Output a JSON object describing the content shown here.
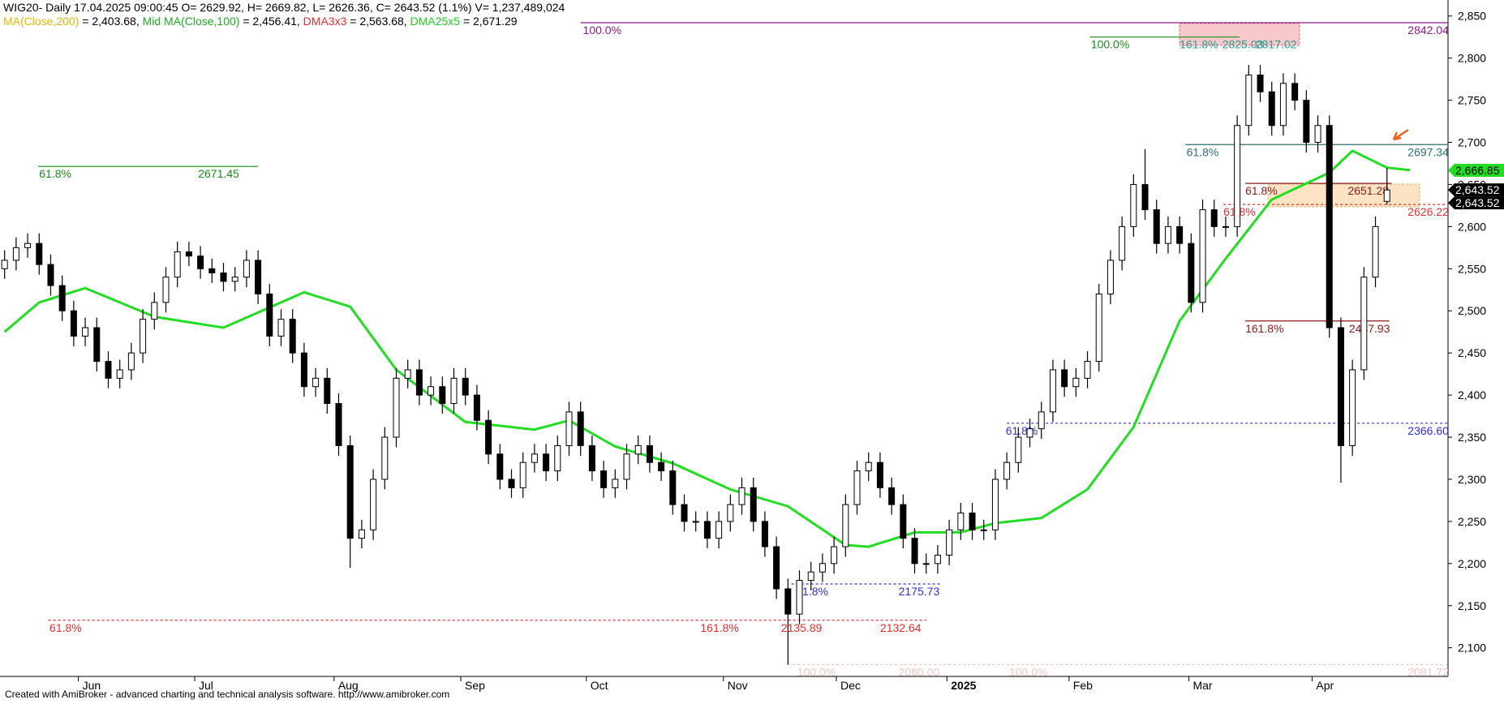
{
  "header": {
    "title": "WIG20- Daily 17.04.2025 09:00:45 O= 2629.92, H= 2669.82, L= 2626.36, C= 2643.52 (1.1%) V= 1,237,489,024",
    "indicators": [
      {
        "name": "MA(Close,200)",
        "value": " = 2,403.68, ",
        "color": "#e6b800"
      },
      {
        "name": "Mid MA(Close,100)",
        "value": " = 2,456.41, ",
        "color": "#22aa22"
      },
      {
        "name": "DMA3x3",
        "value": " = 2,563.68, ",
        "color": "#e03030"
      },
      {
        "name": "DMA25x5",
        "value": " = 2,671.29",
        "color": "#22cc22"
      }
    ]
  },
  "footer": "Created with AmiBroker - advanced charting and technical analysis software. http://www.amibroker.com",
  "chart_data": {
    "type": "candlestick",
    "xlim": [
      -0.4,
      125.3
    ],
    "ylim": [
      2066,
      2869
    ],
    "yticks": [
      {
        "value": 2100,
        "label": "2,100"
      },
      {
        "value": 2150,
        "label": "2,150"
      },
      {
        "value": 2200,
        "label": "2,200"
      },
      {
        "value": 2250,
        "label": "2,250"
      },
      {
        "value": 2300,
        "label": "2,300"
      },
      {
        "value": 2350,
        "label": "2,350"
      },
      {
        "value": 2400,
        "label": "2,400"
      },
      {
        "value": 2450,
        "label": "2,450"
      },
      {
        "value": 2500,
        "label": "2,500"
      },
      {
        "value": 2550,
        "label": "2,550"
      },
      {
        "value": 2600,
        "label": "2,600"
      },
      {
        "value": 2650,
        "label": "2,650"
      },
      {
        "value": 2700,
        "label": "2,700"
      },
      {
        "value": 2750,
        "label": "2,750"
      },
      {
        "value": 2800,
        "label": "2,800"
      },
      {
        "value": 2850,
        "label": "2,850"
      }
    ],
    "xticks": [
      {
        "value": 6.4,
        "label": "Jun"
      },
      {
        "value": 16.5,
        "label": "Jul"
      },
      {
        "value": 28.6,
        "label": "Aug"
      },
      {
        "value": 39.6,
        "label": "Sep"
      },
      {
        "value": 50.5,
        "label": "Oct"
      },
      {
        "value": 62.4,
        "label": "Nov"
      },
      {
        "value": 72.2,
        "label": "Dec"
      },
      {
        "value": 81.8,
        "label": "2025"
      },
      {
        "value": 92.4,
        "label": "Feb"
      },
      {
        "value": 102.8,
        "label": "Mar"
      },
      {
        "value": 113.5,
        "label": "Apr"
      }
    ],
    "up_color": "#ffffff",
    "down_color": "#000000",
    "open": [
      2550,
      2560,
      2575,
      2580,
      2555,
      2530,
      2500,
      2470,
      2480,
      2440,
      2420,
      2430,
      2450,
      2490,
      2510,
      2540,
      2570,
      2565,
      2550,
      2545,
      2535,
      2540,
      2560,
      2520,
      2470,
      2490,
      2450,
      2410,
      2420,
      2390,
      2340,
      2230,
      2240,
      2300,
      2350,
      2420,
      2430,
      2400,
      2410,
      2390,
      2420,
      2400,
      2370,
      2330,
      2300,
      2290,
      2320,
      2330,
      2310,
      2340,
      2380,
      2340,
      2310,
      2290,
      2300,
      2330,
      2340,
      2320,
      2310,
      2270,
      2250,
      2250,
      2230,
      2250,
      2270,
      2290,
      2250,
      2220,
      2170,
      2140,
      2180,
      2190,
      2200,
      2220,
      2270,
      2310,
      2320,
      2290,
      2270,
      2230,
      2200,
      2200,
      2210,
      2240,
      2260,
      2240,
      2240,
      2300,
      2320,
      2350,
      2360,
      2380,
      2430,
      2410,
      2420,
      2440,
      2520,
      2560,
      2600,
      2650,
      2620,
      2580,
      2600,
      2580,
      2510,
      2620,
      2600,
      2600,
      2720,
      2780,
      2760,
      2720,
      2770,
      2750,
      2700,
      2720,
      2480,
      2340,
      2430,
      2540,
      2629.92
    ],
    "high": [
      2572,
      2587,
      2592,
      2592,
      2567,
      2542,
      2512,
      2492,
      2492,
      2452,
      2442,
      2462,
      2502,
      2522,
      2552,
      2582,
      2582,
      2577,
      2562,
      2557,
      2552,
      2572,
      2572,
      2532,
      2502,
      2502,
      2462,
      2432,
      2432,
      2402,
      2352,
      2252,
      2312,
      2362,
      2432,
      2442,
      2442,
      2422,
      2422,
      2432,
      2432,
      2412,
      2382,
      2342,
      2312,
      2332,
      2342,
      2342,
      2352,
      2392,
      2392,
      2352,
      2322,
      2312,
      2342,
      2352,
      2352,
      2332,
      2322,
      2282,
      2262,
      2262,
      2262,
      2282,
      2302,
      2302,
      2262,
      2232,
      2182,
      2192,
      2202,
      2212,
      2232,
      2282,
      2322,
      2332,
      2332,
      2302,
      2282,
      2242,
      2212,
      2222,
      2252,
      2272,
      2272,
      2252,
      2312,
      2332,
      2362,
      2372,
      2392,
      2442,
      2442,
      2432,
      2452,
      2532,
      2572,
      2612,
      2662,
      2692,
      2632,
      2612,
      2612,
      2592,
      2632,
      2632,
      2612,
      2732,
      2792,
      2792,
      2772,
      2782,
      2782,
      2762,
      2732,
      2732,
      2492,
      2442,
      2552,
      2612,
      2669.82
    ],
    "low": [
      2538,
      2548,
      2563,
      2543,
      2518,
      2488,
      2458,
      2458,
      2428,
      2408,
      2408,
      2418,
      2438,
      2478,
      2498,
      2528,
      2553,
      2538,
      2533,
      2523,
      2523,
      2528,
      2508,
      2458,
      2458,
      2438,
      2398,
      2398,
      2378,
      2328,
      2195,
      2218,
      2228,
      2288,
      2338,
      2408,
      2388,
      2388,
      2378,
      2378,
      2388,
      2358,
      2318,
      2288,
      2278,
      2278,
      2308,
      2298,
      2298,
      2328,
      2328,
      2298,
      2278,
      2278,
      2288,
      2318,
      2308,
      2298,
      2258,
      2238,
      2238,
      2218,
      2218,
      2238,
      2258,
      2238,
      2208,
      2158,
      2080,
      2128,
      2168,
      2178,
      2188,
      2208,
      2258,
      2298,
      2278,
      2258,
      2218,
      2188,
      2188,
      2188,
      2198,
      2228,
      2228,
      2228,
      2228,
      2288,
      2308,
      2338,
      2348,
      2368,
      2398,
      2398,
      2408,
      2428,
      2508,
      2548,
      2588,
      2608,
      2568,
      2568,
      2568,
      2498,
      2498,
      2588,
      2588,
      2588,
      2708,
      2748,
      2708,
      2708,
      2738,
      2688,
      2688,
      2468,
      2296,
      2328,
      2418,
      2528,
      2626.36
    ],
    "close": [
      2560,
      2575,
      2580,
      2555,
      2530,
      2500,
      2470,
      2480,
      2440,
      2420,
      2430,
      2450,
      2490,
      2510,
      2540,
      2570,
      2565,
      2550,
      2545,
      2535,
      2540,
      2560,
      2520,
      2470,
      2490,
      2450,
      2410,
      2420,
      2390,
      2340,
      2230,
      2240,
      2300,
      2350,
      2420,
      2430,
      2400,
      2410,
      2390,
      2420,
      2400,
      2370,
      2330,
      2300,
      2290,
      2320,
      2330,
      2310,
      2340,
      2380,
      2340,
      2310,
      2290,
      2300,
      2330,
      2340,
      2320,
      2310,
      2270,
      2250,
      2250,
      2230,
      2250,
      2270,
      2290,
      2250,
      2220,
      2170,
      2140,
      2180,
      2190,
      2200,
      2220,
      2270,
      2310,
      2320,
      2290,
      2270,
      2230,
      2200,
      2200,
      2210,
      2240,
      2260,
      2240,
      2240,
      2300,
      2320,
      2350,
      2360,
      2380,
      2430,
      2410,
      2420,
      2440,
      2520,
      2560,
      2600,
      2650,
      2620,
      2580,
      2600,
      2580,
      2510,
      2620,
      2600,
      2600,
      2720,
      2780,
      2760,
      2720,
      2770,
      2750,
      2700,
      2720,
      2480,
      2340,
      2430,
      2540,
      2600,
      2643.52
    ],
    "ma": {
      "color": "#22dd22",
      "x": [
        0,
        3,
        7,
        13,
        19,
        26,
        30,
        34,
        40,
        46,
        49,
        53,
        58,
        63,
        68,
        73,
        75,
        79,
        83,
        86,
        90,
        94,
        98,
        102,
        106,
        110,
        115,
        117,
        120,
        122
      ],
      "values": [
        2475,
        2510,
        2527,
        2493,
        2480,
        2522,
        2505,
        2430,
        2368,
        2359,
        2370,
        2339,
        2319,
        2288,
        2268,
        2222,
        2220,
        2237,
        2237,
        2248,
        2254,
        2288,
        2362,
        2488,
        2562,
        2632,
        2664,
        2690,
        2670,
        2667
      ]
    },
    "levels": [
      {
        "value": 2842.04,
        "from": 50,
        "to": 125.3,
        "color": "#8a1a8a",
        "dashed": false,
        "labels": [
          {
            "text": "100.0%",
            "at": 50.2
          },
          {
            "text": "2842.04",
            "at": 121.8
          }
        ]
      },
      {
        "value": 2825.03,
        "from": 94.2,
        "to": 107.2,
        "color": "#1a8a1a",
        "dashed": false,
        "labels": [
          {
            "text": "100.0%",
            "at": 94.3
          },
          {
            "text": "161.8%",
            "at": 102,
            "color": "#2a9d8f"
          },
          {
            "text": "2825.03",
            "at": 105.7,
            "color": "#2a9d8f"
          },
          {
            "text": "2817.02",
            "at": 108.6,
            "color": "#2a9d8f"
          }
        ]
      },
      {
        "value": 2671.45,
        "from": 2.9,
        "to": 22,
        "color": "#1a8a1a",
        "dashed": false,
        "labels": [
          {
            "text": "61.8%",
            "at": 3
          },
          {
            "text": "2671.45",
            "at": 16.8
          }
        ]
      },
      {
        "value": 2697.34,
        "from": 102.5,
        "to": 125.3,
        "color": "#2f6f6f",
        "dashed": false,
        "labels": [
          {
            "text": "61.8%",
            "at": 102.6
          },
          {
            "text": "2697.34",
            "at": 121.8
          }
        ]
      },
      {
        "value": 2651.28,
        "from": 107.7,
        "to": 120.4,
        "color": "#8b1a1a",
        "dashed": false,
        "labels": [
          {
            "text": "61.8%",
            "at": 107.7
          },
          {
            "text": "2651.28",
            "at": 116.6
          }
        ]
      },
      {
        "value": 2626.22,
        "from": 105.8,
        "to": 125.3,
        "color": "#e03030",
        "dashed": true,
        "labels": [
          {
            "text": "61.8%",
            "at": 105.8
          },
          {
            "text": "2626.22",
            "at": 121.8
          }
        ]
      },
      {
        "value": 2487.93,
        "from": 107.7,
        "to": 120.2,
        "color": "#8b1a1a",
        "dashed": false,
        "labels": [
          {
            "text": "161.8%",
            "at": 107.7
          },
          {
            "text": "2487.93",
            "at": 116.7
          }
        ]
      },
      {
        "value": 2366.6,
        "from": 87,
        "to": 125.3,
        "color": "#3030d0",
        "dashed": true,
        "labels": [
          {
            "text": "61.8%",
            "at": 86.9
          },
          {
            "text": "2366.60",
            "at": 121.8
          }
        ]
      },
      {
        "value": 2175.73,
        "from": 68.3,
        "to": 81.3,
        "color": "#3030d0",
        "dashed": true,
        "labels": [
          {
            "text": "61.8%",
            "at": 68.7
          },
          {
            "text": "2175.73",
            "at": 77.6
          }
        ]
      },
      {
        "value": 2132.64,
        "from": 3.8,
        "to": 80,
        "color": "#e03030",
        "dashed": true,
        "labels": [
          {
            "text": "61.8%",
            "at": 3.9
          },
          {
            "text": "161.8%",
            "at": 60.4
          },
          {
            "text": "2135.89",
            "at": 67.4
          },
          {
            "text": "2132.64",
            "at": 76
          }
        ]
      },
      {
        "value": 2080,
        "from": 68,
        "to": 125.3,
        "color": "#f2c6c6",
        "dashed": true,
        "labels": [
          {
            "text": "100.0%",
            "at": 68.8
          },
          {
            "text": "2080.00",
            "at": 77.6
          },
          {
            "text": "100.0%",
            "at": 87.2
          },
          {
            "text": "2081.72",
            "at": 121.8
          }
        ]
      }
    ],
    "price_tags": [
      {
        "value": 2666.85,
        "label": "2,666.85",
        "color": "#22dd22"
      },
      {
        "value": 2643.52,
        "label": "2,643.52",
        "color": "#000000"
      },
      {
        "value": 2643.52,
        "label": "2,643.52",
        "color": "#000000"
      }
    ]
  }
}
